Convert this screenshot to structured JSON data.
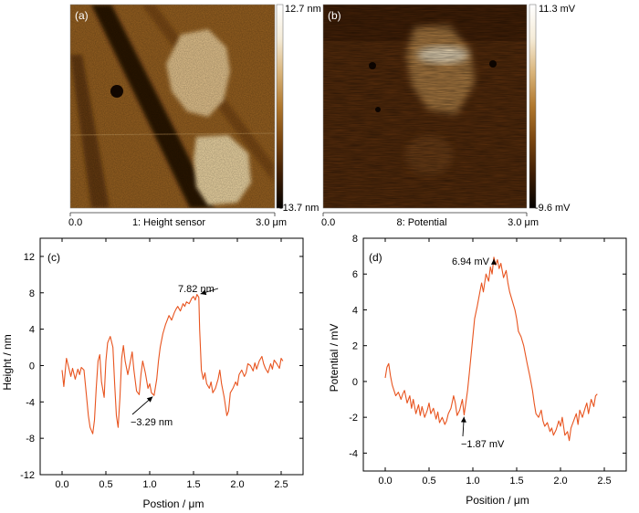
{
  "maps": [
    {
      "panel": "(a)",
      "x_start": "0.0",
      "x_end": "3.0 μm",
      "caption": "1: Height sensor",
      "scale_max": "12.7 nm",
      "scale_min": "-13.7 nm",
      "colormap": [
        "#050200",
        "#3d1d04",
        "#7a4610",
        "#b0782e",
        "#d9b47a",
        "#f5ecd8",
        "#ffffff"
      ]
    },
    {
      "panel": "(b)",
      "x_start": "0.0",
      "x_end": "3.0 μm",
      "caption": "8: Potential",
      "scale_max": "11.3 mV",
      "scale_min": "-9.6 mV",
      "colormap": [
        "#050200",
        "#3d1d04",
        "#7a4610",
        "#b0782e",
        "#d9b47a",
        "#f5ecd8",
        "#ffffff"
      ]
    }
  ],
  "chart_data": [
    {
      "panel": "(c)",
      "type": "line",
      "xlabel": "Postion / μm",
      "ylabel": "Height / nm",
      "xlim": [
        -0.25,
        2.75
      ],
      "ylim": [
        -12,
        14
      ],
      "xticks": [
        0.0,
        0.5,
        1.0,
        1.5,
        2.0,
        2.5
      ],
      "xtick_labels": [
        "0.0",
        "0.5",
        "1.0",
        "1.5",
        "2.0",
        "2.5"
      ],
      "yticks": [
        -12,
        -8,
        -4,
        0,
        4,
        8,
        12
      ],
      "ytick_labels": [
        "-12",
        "-8",
        "-4",
        "0",
        "4",
        "8",
        "12"
      ],
      "line_color": "#e8541f",
      "series": [
        {
          "x": [
            0.0,
            0.02,
            0.05,
            0.08,
            0.1,
            0.12,
            0.15,
            0.18,
            0.2,
            0.22,
            0.25,
            0.28,
            0.3,
            0.32,
            0.35,
            0.37,
            0.39,
            0.41,
            0.43,
            0.45,
            0.48,
            0.5,
            0.52,
            0.55,
            0.58,
            0.6,
            0.62,
            0.64,
            0.66,
            0.68,
            0.7,
            0.72,
            0.75,
            0.78,
            0.8,
            0.82,
            0.85,
            0.88,
            0.9,
            0.92,
            0.95,
            0.98,
            1.0,
            1.02,
            1.05,
            1.08,
            1.1,
            1.12,
            1.15,
            1.18,
            1.2,
            1.22,
            1.25,
            1.28,
            1.3,
            1.32,
            1.35,
            1.38,
            1.4,
            1.42,
            1.45,
            1.48,
            1.5,
            1.52,
            1.54,
            1.56,
            1.57,
            1.59,
            1.61,
            1.63,
            1.65,
            1.68,
            1.7,
            1.72,
            1.75,
            1.78,
            1.8,
            1.82,
            1.85,
            1.88,
            1.9,
            1.92,
            1.95,
            1.98,
            2.0,
            2.02,
            2.05,
            2.08,
            2.1,
            2.12,
            2.15,
            2.18,
            2.2,
            2.22,
            2.25,
            2.28,
            2.3,
            2.32,
            2.35,
            2.38,
            2.4,
            2.42,
            2.45,
            2.48,
            2.5,
            2.52
          ],
          "y": [
            -0.5,
            -2.3,
            0.8,
            -0.4,
            -1.2,
            -0.3,
            -1.5,
            -0.4,
            -1.0,
            -0.2,
            -0.5,
            -3.5,
            -5.5,
            -6.8,
            -7.5,
            -6.0,
            -2.5,
            0.5,
            1.2,
            -1.8,
            -3.5,
            0.5,
            2.5,
            3.2,
            2.0,
            -2.0,
            -5.5,
            -6.8,
            -3.5,
            0.8,
            2.2,
            0.5,
            -1.0,
            0.5,
            1.5,
            -0.5,
            -2.8,
            -3.2,
            -1.0,
            0.5,
            -0.8,
            -2.5,
            -2.0,
            -3.0,
            -3.29,
            -1.5,
            0.5,
            2.0,
            3.5,
            4.5,
            5.0,
            5.5,
            5.0,
            5.8,
            6.2,
            6.5,
            6.0,
            6.8,
            6.5,
            7.0,
            6.8,
            7.4,
            7.6,
            7.2,
            7.82,
            7.5,
            4.0,
            -0.5,
            -1.5,
            -0.8,
            -2.0,
            -2.5,
            -1.8,
            -3.0,
            -2.5,
            -1.5,
            -0.5,
            -2.0,
            -3.5,
            -5.5,
            -5.0,
            -3.0,
            -2.5,
            -1.8,
            -2.2,
            -1.0,
            -0.5,
            -1.2,
            -0.8,
            0.2,
            0.0,
            -0.6,
            0.3,
            -0.4,
            0.5,
            1.0,
            0.2,
            -0.3,
            -0.8,
            0.2,
            -0.4,
            0.6,
            0.2,
            -0.3,
            0.8,
            0.5
          ]
        }
      ],
      "annotations": [
        {
          "label": "7.82 nm",
          "x": 1.56,
          "y": 7.82
        },
        {
          "label": "−3.29 nm",
          "x": 1.05,
          "y": -3.29
        }
      ]
    },
    {
      "panel": "(d)",
      "type": "line",
      "xlabel": "Position / μm",
      "ylabel": "Potential / mV",
      "xlim": [
        -0.25,
        2.75
      ],
      "ylim": [
        -5,
        8
      ],
      "xticks": [
        0.0,
        0.5,
        1.0,
        1.5,
        2.0,
        2.5
      ],
      "xtick_labels": [
        "0.0",
        "0.5",
        "1.0",
        "1.5",
        "2.0",
        "2.5"
      ],
      "yticks": [
        -4,
        -2,
        0,
        2,
        4,
        6,
        8
      ],
      "ytick_labels": [
        "-4",
        "-2",
        "0",
        "2",
        "4",
        "6",
        "8"
      ],
      "line_color": "#e8541f",
      "series": [
        {
          "x": [
            0.0,
            0.02,
            0.04,
            0.06,
            0.08,
            0.1,
            0.12,
            0.15,
            0.18,
            0.2,
            0.22,
            0.25,
            0.28,
            0.3,
            0.32,
            0.35,
            0.38,
            0.4,
            0.42,
            0.45,
            0.48,
            0.5,
            0.52,
            0.55,
            0.58,
            0.6,
            0.62,
            0.65,
            0.68,
            0.7,
            0.72,
            0.75,
            0.78,
            0.8,
            0.82,
            0.85,
            0.88,
            0.9,
            0.92,
            0.94,
            0.96,
            0.98,
            1.0,
            1.02,
            1.05,
            1.08,
            1.1,
            1.12,
            1.15,
            1.18,
            1.2,
            1.22,
            1.24,
            1.26,
            1.28,
            1.3,
            1.32,
            1.35,
            1.38,
            1.4,
            1.42,
            1.45,
            1.48,
            1.5,
            1.52,
            1.55,
            1.58,
            1.6,
            1.62,
            1.65,
            1.68,
            1.7,
            1.72,
            1.75,
            1.78,
            1.8,
            1.82,
            1.85,
            1.88,
            1.9,
            1.92,
            1.95,
            1.98,
            2.0,
            2.02,
            2.05,
            2.08,
            2.1,
            2.12,
            2.15,
            2.18,
            2.2,
            2.22,
            2.25,
            2.28,
            2.3,
            2.32,
            2.35,
            2.38,
            2.4,
            2.42
          ],
          "y": [
            0.2,
            0.8,
            1.0,
            0.3,
            -0.2,
            -0.5,
            -0.8,
            -0.6,
            -1.0,
            -0.7,
            -0.5,
            -1.2,
            -0.8,
            -1.5,
            -1.0,
            -1.8,
            -1.3,
            -1.9,
            -1.4,
            -2.0,
            -1.6,
            -1.2,
            -1.8,
            -1.5,
            -2.1,
            -1.7,
            -2.3,
            -2.0,
            -2.4,
            -2.2,
            -1.8,
            -1.5,
            -0.8,
            -1.2,
            -1.9,
            -1.6,
            -1.0,
            -1.87,
            -1.2,
            -0.5,
            0.5,
            1.5,
            2.5,
            3.5,
            4.2,
            5.0,
            5.5,
            5.0,
            6.0,
            5.6,
            6.4,
            6.0,
            6.94,
            6.5,
            6.8,
            6.3,
            6.6,
            5.8,
            6.2,
            5.5,
            5.0,
            4.5,
            4.0,
            3.5,
            2.8,
            2.5,
            2.0,
            1.5,
            1.0,
            0.3,
            -0.5,
            -1.2,
            -1.8,
            -2.0,
            -1.6,
            -2.2,
            -2.5,
            -2.3,
            -2.8,
            -2.6,
            -3.0,
            -2.7,
            -2.2,
            -2.5,
            -2.0,
            -3.0,
            -2.8,
            -3.3,
            -2.6,
            -2.2,
            -1.8,
            -2.4,
            -1.6,
            -2.0,
            -1.5,
            -1.2,
            -1.8,
            -1.0,
            -1.4,
            -0.8,
            -0.7
          ]
        }
      ],
      "annotations": [
        {
          "label": "6.94 mV",
          "x": 1.24,
          "y": 6.94
        },
        {
          "label": "−1.87 mV",
          "x": 0.9,
          "y": -1.87
        }
      ]
    }
  ]
}
